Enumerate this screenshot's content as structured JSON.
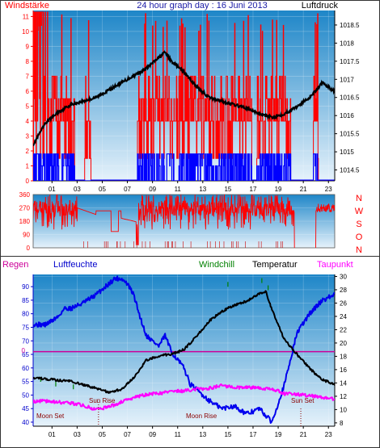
{
  "header": {
    "left": "Windstärke",
    "title": "24 hour graph day : 16 Juni 2013",
    "right": "Luftdruck"
  },
  "middle": {
    "direction_labels": [
      "N",
      "W",
      "S",
      "O",
      "N"
    ]
  },
  "bottom": {
    "regen": "Regen",
    "luftfeuchte": "Luftfeuchte",
    "windchill": "Windchill",
    "temperatur": "Temperatur",
    "taupunkt": "Taupunkt",
    "sun_rise": "Sun Rise",
    "sun_set": "Sun Set",
    "moon_set": "Moon Set",
    "moon_rise": "Moon Rise",
    "regen_zero": "0"
  },
  "colors": {
    "bg_top": "#1e86c8",
    "bg_bottom": "#e6f2fb",
    "wind": "#ff0000",
    "gust_low": "#0000ff",
    "pressure": "#000000",
    "humidity": "#0000ee",
    "temperature": "#000000",
    "dewpoint": "#ff00ff",
    "windchill": "#008000",
    "rain": "#cc0099"
  },
  "chart_data": [
    {
      "type": "line",
      "x_ticks": [
        "01",
        "03",
        "05",
        "07",
        "09",
        "11",
        "13",
        "15",
        "17",
        "19",
        "21",
        "23"
      ],
      "y_left_ticks": [
        "0",
        "1",
        "2",
        "3",
        "4",
        "5",
        "6",
        "7",
        "8",
        "9",
        "10",
        "11"
      ],
      "y_right_ticks": [
        "1014.5",
        "1015",
        "1015.5",
        "1016",
        "1016.5",
        "1017",
        "1017.5",
        "1018",
        "1018.5"
      ],
      "ylim_left": [
        0,
        11.4
      ],
      "ylim_right": [
        1014.2,
        1018.9
      ],
      "series": [
        {
          "key": "pressure",
          "x": [
            0,
            1,
            2,
            3,
            4,
            5,
            6,
            7,
            8,
            9,
            10,
            10.5,
            11,
            12,
            13,
            14,
            15,
            16,
            17,
            18,
            19,
            20,
            21,
            22,
            23,
            23.5,
            24
          ],
          "values": [
            1015.2,
            1015.8,
            1016.1,
            1016.3,
            1016.4,
            1016.5,
            1016.7,
            1016.9,
            1017.1,
            1017.3,
            1017.6,
            1017.75,
            1017.5,
            1017.2,
            1016.8,
            1016.5,
            1016.4,
            1016.3,
            1016.2,
            1016.05,
            1015.95,
            1016.05,
            1016.25,
            1016.5,
            1016.9,
            1016.8,
            1016.65
          ]
        }
      ]
    },
    {
      "type": "line",
      "y_left_ticks": [
        "0",
        "90",
        "180",
        "270",
        "360"
      ],
      "ylim": [
        0,
        360
      ]
    },
    {
      "type": "line",
      "x_ticks": [
        "01",
        "03",
        "05",
        "07",
        "09",
        "11",
        "13",
        "15",
        "17",
        "19",
        "21",
        "23"
      ],
      "y_left_ticks": [
        "40",
        "45",
        "50",
        "55",
        "60",
        "65",
        "70",
        "75",
        "80",
        "85",
        "90"
      ],
      "y_right_ticks": [
        "8",
        "10",
        "12",
        "14",
        "16",
        "18",
        "20",
        "22",
        "24",
        "26",
        "28",
        "30"
      ],
      "ylim_left": [
        38.5,
        94.5
      ],
      "ylim_right": [
        7.5,
        30.3
      ],
      "series": [
        {
          "key": "humidity",
          "x": [
            0,
            1,
            2,
            2.5,
            3,
            4,
            5,
            6,
            6.5,
            7,
            7.5,
            8,
            8.5,
            9,
            10,
            10.5,
            11,
            12,
            12.5,
            13,
            14,
            15,
            16,
            17,
            18,
            19,
            20,
            21,
            22,
            23,
            24
          ],
          "values": [
            76,
            76,
            79,
            82,
            82,
            84,
            87,
            91,
            93,
            93,
            91,
            87,
            79,
            72,
            68,
            72,
            66,
            60,
            54,
            52,
            48,
            45,
            46,
            43,
            45,
            40,
            54,
            73,
            80,
            85,
            87
          ]
        },
        {
          "key": "temperature",
          "x": [
            0,
            1,
            2,
            3,
            4,
            5,
            6,
            7,
            8,
            9,
            10,
            11,
            12,
            13,
            14,
            15,
            16,
            17,
            18,
            18.5,
            19,
            20,
            21,
            22,
            23,
            24
          ],
          "values": [
            14.8,
            14.6,
            14.4,
            14.3,
            13.7,
            13.2,
            12.6,
            13,
            14.8,
            17.4,
            18.1,
            18.3,
            19,
            21,
            23.3,
            24.7,
            25.7,
            26.3,
            27.4,
            27.8,
            25,
            20.5,
            18.3,
            16.2,
            14.5,
            13.8
          ]
        },
        {
          "key": "dewpoint",
          "x": [
            0,
            1,
            2,
            3,
            4,
            5,
            6,
            7,
            8,
            9,
            10,
            11,
            12,
            13,
            14,
            15,
            16,
            17,
            18,
            19,
            20,
            21,
            22,
            23,
            24
          ],
          "values": [
            11.2,
            11.3,
            11.1,
            11,
            10.6,
            10,
            10.4,
            11.1,
            11.8,
            12.3,
            12.4,
            12.8,
            12.8,
            13.1,
            13.2,
            13.6,
            13.3,
            13.4,
            13.2,
            13.1,
            12.4,
            12.3,
            12.1,
            11.8,
            11.6
          ]
        }
      ]
    }
  ]
}
